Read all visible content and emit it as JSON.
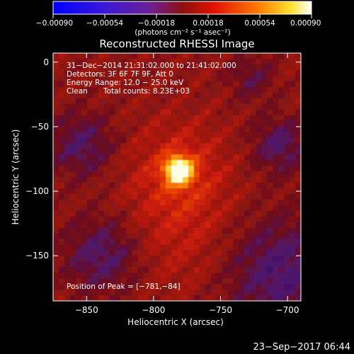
{
  "chart_data": {
    "type": "heatmap",
    "title": "Reconstructed RHESSI Image",
    "xlabel": "Heliocentric X (arcsec)",
    "ylabel": "Heliocentric Y (arcsec)",
    "xlim": [
      -875,
      -690
    ],
    "ylim": [
      -185,
      7
    ],
    "x_ticks": [
      -850,
      -800,
      -750,
      -700
    ],
    "y_ticks": [
      0,
      -50,
      -100,
      -150
    ],
    "x_tick_labels": [
      "−850",
      "−800",
      "−750",
      "−700"
    ],
    "y_tick_labels": [
      "0",
      "−50",
      "−100",
      "−150"
    ],
    "colorbar": {
      "range": [
        -0.0009,
        0.0009
      ],
      "ticks": [
        -0.0009,
        -0.00054,
        -0.00018,
        0.00018,
        0.00054,
        0.0009
      ],
      "tick_labels": [
        "−0.00090",
        "−0.00054",
        "−0.00018",
        "0.00018",
        "0.00054",
        "0.00090"
      ],
      "unit_label": "(photons cm⁻² s⁻¹ asec⁻²)"
    },
    "annotations": {
      "time_range": "31−Dec−2014 21:31:02.000 to 21:41:02.000",
      "detectors": "Detectors: 3F 6F 7F 9F, Att 0",
      "energy": "Energy Range: 12.0 − 25.0 keV",
      "method": "Clean",
      "total_counts": "Total counts: 8.23E+03",
      "peak": "Position of Peak = [−781,−84]"
    },
    "peak": {
      "x": -781,
      "y": -84
    },
    "footer_date": "23−Sep−2017 06:44"
  }
}
